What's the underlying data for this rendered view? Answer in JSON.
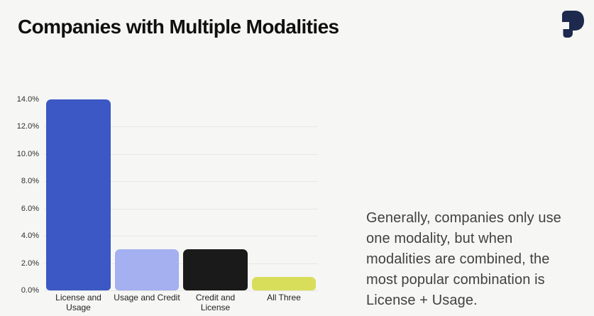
{
  "header": {
    "title": "Companies with Multiple Modalities",
    "logo_icon": "paid-p-logo"
  },
  "chart_data": {
    "type": "bar",
    "title": "Companies with Multiple Modalities",
    "categories": [
      "License and Usage",
      "Usage and Credit",
      "Credit and License",
      "All Three"
    ],
    "values": [
      14.0,
      3.0,
      3.0,
      1.0
    ],
    "bar_colors": [
      "#3b58c4",
      "#a4b0ef",
      "#1a1a1a",
      "#d8de5a"
    ],
    "xlabel": "",
    "ylabel": "",
    "ylim": [
      0,
      14
    ],
    "ytick_values": [
      0,
      2,
      4,
      6,
      8,
      10,
      12,
      14
    ],
    "ytick_labels": [
      "0.0%",
      "2.0%",
      "4.0%",
      "6.0%",
      "8.0%",
      "10.0%",
      "12.0%",
      "14.0%"
    ],
    "gridline_values": [
      0,
      2,
      4,
      6,
      8,
      10,
      12
    ],
    "grid": "horizontal",
    "legend": "none"
  },
  "annotation": {
    "lines": [
      "Generally, companies only use",
      "one modality, but when",
      "modalities are combined, the",
      "most popular combination is",
      "License + Usage."
    ]
  },
  "colors": {
    "background": "#f6f6f4",
    "gridline": "#e7e7e4",
    "title_text": "#101010",
    "axis_label_text": "#2f2f2f",
    "category_label_text": "#222222",
    "annotation_text": "#414141",
    "logo": "#1d2a4e"
  }
}
